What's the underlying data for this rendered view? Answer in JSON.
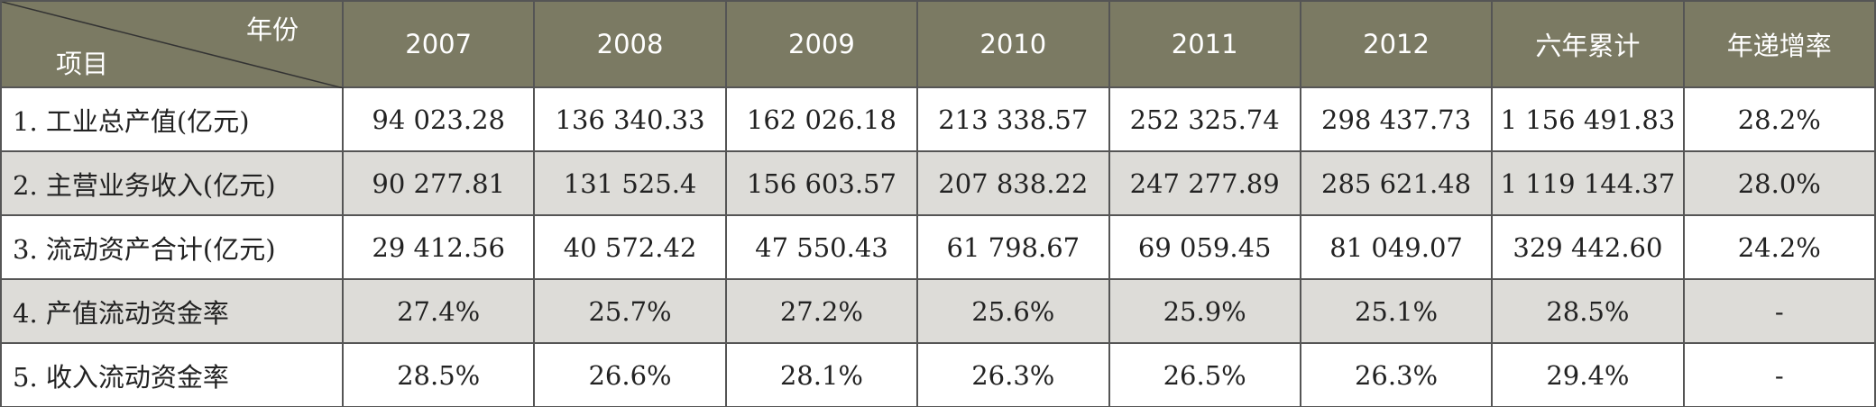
{
  "header": {
    "corner_top": "年份",
    "corner_bottom": "项目",
    "columns": [
      "2007",
      "2008",
      "2009",
      "2010",
      "2011",
      "2012",
      "六年累计",
      "年递增率"
    ]
  },
  "table": {
    "rows": [
      [
        "1. 工业总产值(亿元)",
        "94 023.28",
        "136 340.33",
        "162 026.18",
        "213 338.57",
        "252 325.74",
        "298 437.73",
        "1 156 491.83",
        "28.2%"
      ],
      [
        "2. 主营业务收入(亿元)",
        "90 277.81",
        "131 525.4",
        "156 603.57",
        "207 838.22",
        "247 277.89",
        "285 621.48",
        "1 119 144.37",
        "28.0%"
      ],
      [
        "3. 流动资产合计(亿元)",
        "29 412.56",
        "40 572.42",
        "47 550.43",
        "61 798.67",
        "69 059.45",
        "81 049.07",
        "329 442.60",
        "24.2%"
      ],
      [
        "4. 产值流动资金率",
        "27.4%",
        "25.7%",
        "27.2%",
        "25.6%",
        "25.9%",
        "25.1%",
        "28.5%",
        "-"
      ],
      [
        "5. 收入流动资金率",
        "28.5%",
        "26.6%",
        "28.1%",
        "26.3%",
        "26.5%",
        "26.3%",
        "29.4%",
        "-"
      ]
    ]
  }
}
